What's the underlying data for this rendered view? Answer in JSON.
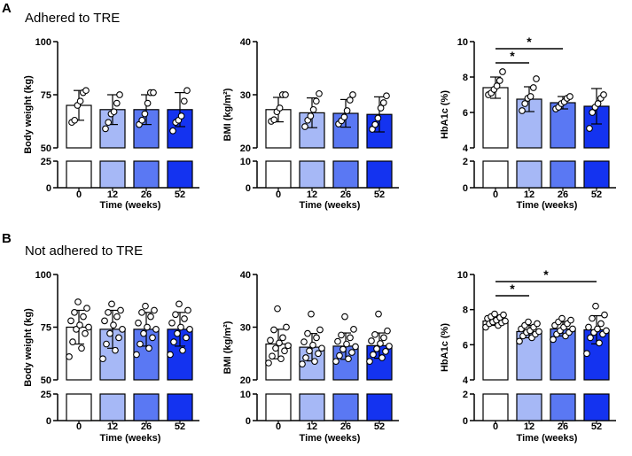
{
  "panels": [
    {
      "letter": "A",
      "title": "Adhered to TRE"
    },
    {
      "letter": "B",
      "title": "Not adhered to TRE"
    }
  ],
  "colors": {
    "bar_fills": [
      "#ffffff",
      "#a6b8f6",
      "#5a78f3",
      "#1433f0"
    ],
    "marker_face": "#ffffff",
    "ink": "#000000"
  },
  "chart_data": [
    {
      "id": "A-weight",
      "type": "bar",
      "group": "A",
      "categories": [
        "0",
        "12",
        "26",
        "52"
      ],
      "xlabel": "Time (weeks)",
      "ylabel": "Body weight (kg)",
      "values": [
        70,
        68,
        68,
        68
      ],
      "sd": [
        7,
        7,
        7,
        8
      ],
      "points": [
        [
          62,
          63,
          70,
          72,
          76,
          77
        ],
        [
          59,
          62,
          66,
          67,
          71,
          75
        ],
        [
          61,
          63,
          66,
          71,
          76,
          76
        ],
        [
          58,
          62,
          63,
          65,
          72,
          77
        ]
      ],
      "y_upper": {
        "range": [
          50,
          100
        ],
        "ticks": [
          "100",
          "75",
          "50"
        ]
      },
      "y_lower": {
        "range": [
          0,
          25
        ],
        "ticks": [
          "25",
          "0"
        ]
      },
      "significance": []
    },
    {
      "id": "A-bmi",
      "type": "bar",
      "group": "A",
      "categories": [
        "0",
        "12",
        "26",
        "52"
      ],
      "xlabel": "Time (weeks)",
      "ylabel": "BMI (kg/m²)",
      "values": [
        27.2,
        26.6,
        26.5,
        26.3
      ],
      "sd": [
        2.3,
        2.8,
        2.6,
        3.3
      ],
      "points": [
        [
          25,
          25.3,
          26.8,
          27.5,
          30.0,
          30.0
        ],
        [
          24,
          25.2,
          26.0,
          27.2,
          28.8,
          30.2
        ],
        [
          24.5,
          25.1,
          25.8,
          27.0,
          29.0,
          30.0
        ],
        [
          23.5,
          24.4,
          25.6,
          27.5,
          28.5,
          29.8
        ]
      ],
      "y_upper": {
        "range": [
          20,
          40
        ],
        "ticks": [
          "40",
          "30",
          "20"
        ]
      },
      "y_lower": {
        "range": [
          0,
          10
        ],
        "ticks": [
          "10",
          "0"
        ]
      },
      "significance": []
    },
    {
      "id": "A-hba1c",
      "type": "bar",
      "group": "A",
      "categories": [
        "0",
        "12",
        "26",
        "52"
      ],
      "xlabel": "Time (weeks)",
      "ylabel": "HbA1c (%)",
      "values": [
        7.4,
        6.75,
        6.55,
        6.35
      ],
      "sd": [
        0.6,
        0.7,
        0.35,
        1.0
      ],
      "points": [
        [
          7.0,
          7.1,
          7.3,
          7.5,
          7.8,
          8.3
        ],
        [
          6.1,
          6.5,
          6.8,
          6.9,
          7.4,
          7.9
        ],
        [
          6.2,
          6.3,
          6.5,
          6.6,
          6.8,
          6.9
        ],
        [
          5.1,
          6.0,
          6.3,
          6.5,
          6.8,
          7.0
        ]
      ],
      "y_upper": {
        "range": [
          4,
          10
        ],
        "ticks": [
          "10",
          "8",
          "6",
          "4"
        ]
      },
      "y_lower": {
        "range": [
          0,
          2
        ],
        "ticks": [
          "2",
          "0"
        ]
      },
      "significance": [
        {
          "from": 0,
          "to": 1,
          "label": "*"
        },
        {
          "from": 0,
          "to": 2,
          "label": "*"
        }
      ]
    },
    {
      "id": "B-weight",
      "type": "bar",
      "group": "B",
      "categories": [
        "0",
        "12",
        "26",
        "52"
      ],
      "xlabel": "Time (weeks)",
      "ylabel": "Body weight (kg)",
      "values": [
        75,
        74,
        74,
        74
      ],
      "sd": [
        8,
        9,
        8,
        8
      ],
      "points": [
        [
          61,
          65,
          68,
          72,
          74,
          75,
          76,
          78,
          80,
          82,
          84,
          87
        ],
        [
          60,
          64,
          67,
          70,
          72,
          74,
          76,
          78,
          80,
          82,
          83,
          86
        ],
        [
          62,
          65,
          67,
          70,
          72,
          74,
          75,
          77,
          80,
          82,
          83,
          85
        ],
        [
          62,
          64,
          68,
          70,
          72,
          74,
          75,
          77,
          79,
          81,
          83,
          86
        ]
      ],
      "y_upper": {
        "range": [
          50,
          100
        ],
        "ticks": [
          "100",
          "75",
          "50"
        ]
      },
      "y_lower": {
        "range": [
          0,
          25
        ],
        "ticks": [
          "25",
          "0"
        ]
      },
      "significance": []
    },
    {
      "id": "B-bmi",
      "type": "bar",
      "group": "B",
      "categories": [
        "0",
        "12",
        "26",
        "52"
      ],
      "xlabel": "Time (weeks)",
      "ylabel": "BMI (kg/m²)",
      "values": [
        26.8,
        26.2,
        26.4,
        26.5
      ],
      "sd": [
        2.8,
        2.6,
        2.5,
        2.4
      ],
      "points": [
        [
          23.2,
          24.0,
          24.5,
          25.5,
          26.0,
          26.5,
          27.0,
          27.5,
          28.0,
          29.5,
          30.0,
          33.5
        ],
        [
          23.0,
          23.5,
          24.2,
          25.0,
          25.5,
          26.0,
          26.6,
          27.2,
          28.0,
          28.8,
          29.5,
          32.5
        ],
        [
          23.5,
          24.0,
          24.6,
          25.2,
          25.8,
          26.3,
          26.8,
          27.3,
          28.0,
          28.5,
          29.6,
          32.0
        ],
        [
          23.5,
          24.2,
          24.8,
          25.4,
          25.9,
          26.4,
          26.9,
          27.4,
          28.0,
          28.6,
          29.3,
          32.5
        ]
      ],
      "y_upper": {
        "range": [
          20,
          40
        ],
        "ticks": [
          "40",
          "30",
          "20"
        ]
      },
      "y_lower": {
        "range": [
          0,
          10
        ],
        "ticks": [
          "10",
          "0"
        ]
      },
      "significance": []
    },
    {
      "id": "B-hba1c",
      "type": "bar",
      "group": "B",
      "categories": [
        "0",
        "12",
        "26",
        "52"
      ],
      "xlabel": "Time (weeks)",
      "ylabel": "HbA1c (%)",
      "values": [
        7.35,
        6.75,
        6.9,
        6.85
      ],
      "sd": [
        0.25,
        0.35,
        0.4,
        0.8
      ],
      "points": [
        [
          7.0,
          7.1,
          7.2,
          7.25,
          7.3,
          7.35,
          7.4,
          7.5,
          7.55,
          7.6,
          7.7,
          7.75
        ],
        [
          6.2,
          6.4,
          6.5,
          6.6,
          6.7,
          6.75,
          6.8,
          6.9,
          7.0,
          7.1,
          7.2,
          7.3
        ],
        [
          6.3,
          6.5,
          6.6,
          6.7,
          6.8,
          6.9,
          7.0,
          7.1,
          7.2,
          7.3,
          7.4,
          7.5
        ],
        [
          5.5,
          6.1,
          6.4,
          6.6,
          6.7,
          6.8,
          6.9,
          7.0,
          7.2,
          7.5,
          7.7,
          8.2
        ]
      ],
      "y_upper": {
        "range": [
          4,
          10
        ],
        "ticks": [
          "10",
          "8",
          "6",
          "4"
        ]
      },
      "y_lower": {
        "range": [
          0,
          2
        ],
        "ticks": [
          "2",
          "0"
        ]
      },
      "significance": [
        {
          "from": 0,
          "to": 1,
          "label": "*"
        },
        {
          "from": 0,
          "to": 3,
          "label": "*"
        }
      ]
    }
  ]
}
